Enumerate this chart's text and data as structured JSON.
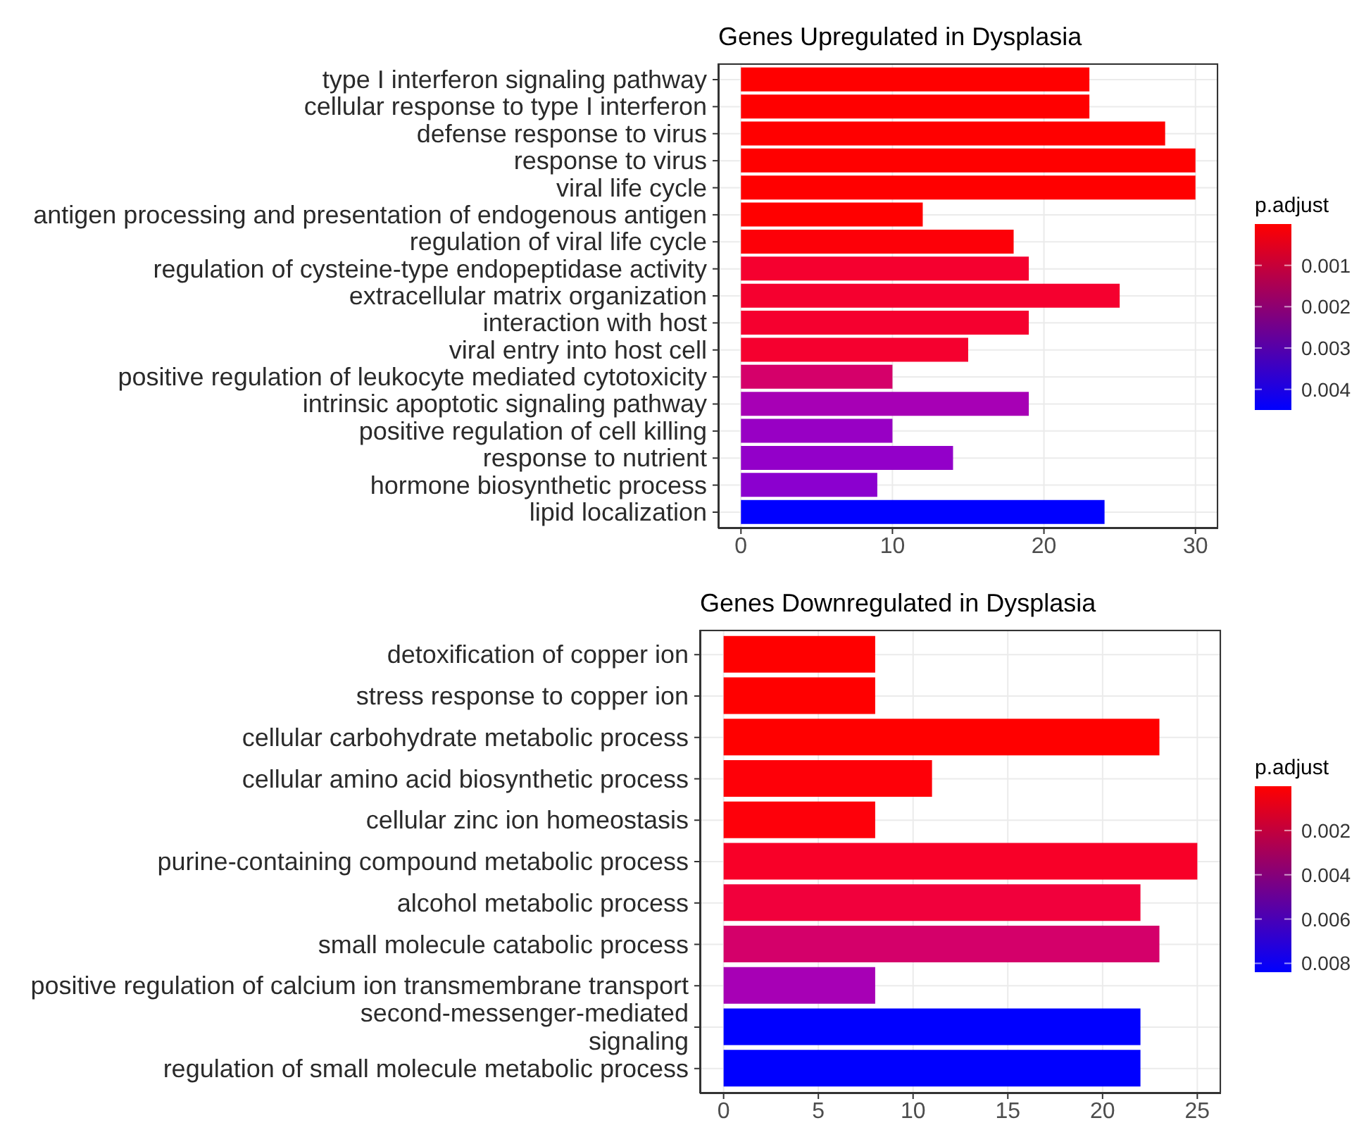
{
  "chart_data": [
    {
      "type": "bar",
      "orientation": "horizontal",
      "title": "Genes Upregulated in Dysplasia",
      "categories": [
        "type I interferon signaling pathway",
        "cellular response to type I interferon",
        "defense response to virus",
        "response to virus",
        "viral life cycle",
        "antigen processing and presentation of endogenous antigen",
        "regulation of viral life cycle",
        "regulation of cysteine-type endopeptidase activity",
        "extracellular matrix organization",
        "interaction with host",
        "viral entry into host cell",
        "positive regulation of leukocyte mediated cytotoxicity",
        "intrinsic apoptotic signaling pathway",
        "positive regulation of cell killing",
        "response to nutrient",
        "hormone biosynthetic process",
        "lipid localization"
      ],
      "values": [
        23,
        23,
        28,
        30,
        30,
        12,
        18,
        19,
        25,
        19,
        15,
        10,
        19,
        10,
        14,
        9,
        24
      ],
      "colors": [
        "#ff0000",
        "#ff0000",
        "#ff0000",
        "#ff0000",
        "#ff0000",
        "#ff0000",
        "#fd0008",
        "#f5002f",
        "#f5002f",
        "#f5002f",
        "#f5002f",
        "#d5006a",
        "#a700b5",
        "#9800c4",
        "#9300c9",
        "#8b00cf",
        "#0000ff"
      ],
      "xlim": [
        -1.5,
        31.5
      ],
      "xticks": [
        0,
        10,
        20,
        30
      ],
      "grid": true,
      "clabel": "p.adjust",
      "clim": [
        0.0045,
        0
      ],
      "cticks": [
        0.001,
        0.002,
        0.003,
        0.004
      ]
    },
    {
      "type": "bar",
      "orientation": "horizontal",
      "title": "Genes Downregulated in Dysplasia",
      "categories": [
        "detoxification of copper ion",
        "stress response to copper ion",
        "cellular carbohydrate metabolic process",
        "cellular amino acid biosynthetic process",
        "cellular zinc ion homeostasis",
        "purine-containing compound metabolic process",
        "alcohol metabolic process",
        "small molecule catabolic process",
        "positive regulation of calcium ion transmembrane transport",
        "second-messenger-mediated\nsignaling",
        "regulation of small molecule metabolic process"
      ],
      "values": [
        8,
        8,
        23,
        11,
        8,
        25,
        22,
        23,
        8,
        22,
        22
      ],
      "colors": [
        "#ff0000",
        "#ff0000",
        "#ff0000",
        "#fe0008",
        "#fe000a",
        "#f80028",
        "#f1003c",
        "#d4006a",
        "#a700b5",
        "#0000ff",
        "#0000ff"
      ],
      "xlim": [
        -1.25,
        26.25
      ],
      "xticks": [
        0,
        5,
        10,
        15,
        20,
        25
      ],
      "grid": true,
      "clabel": "p.adjust",
      "clim": [
        0.0084,
        0
      ],
      "cticks": [
        0.002,
        0.004,
        0.006,
        0.008
      ]
    }
  ]
}
